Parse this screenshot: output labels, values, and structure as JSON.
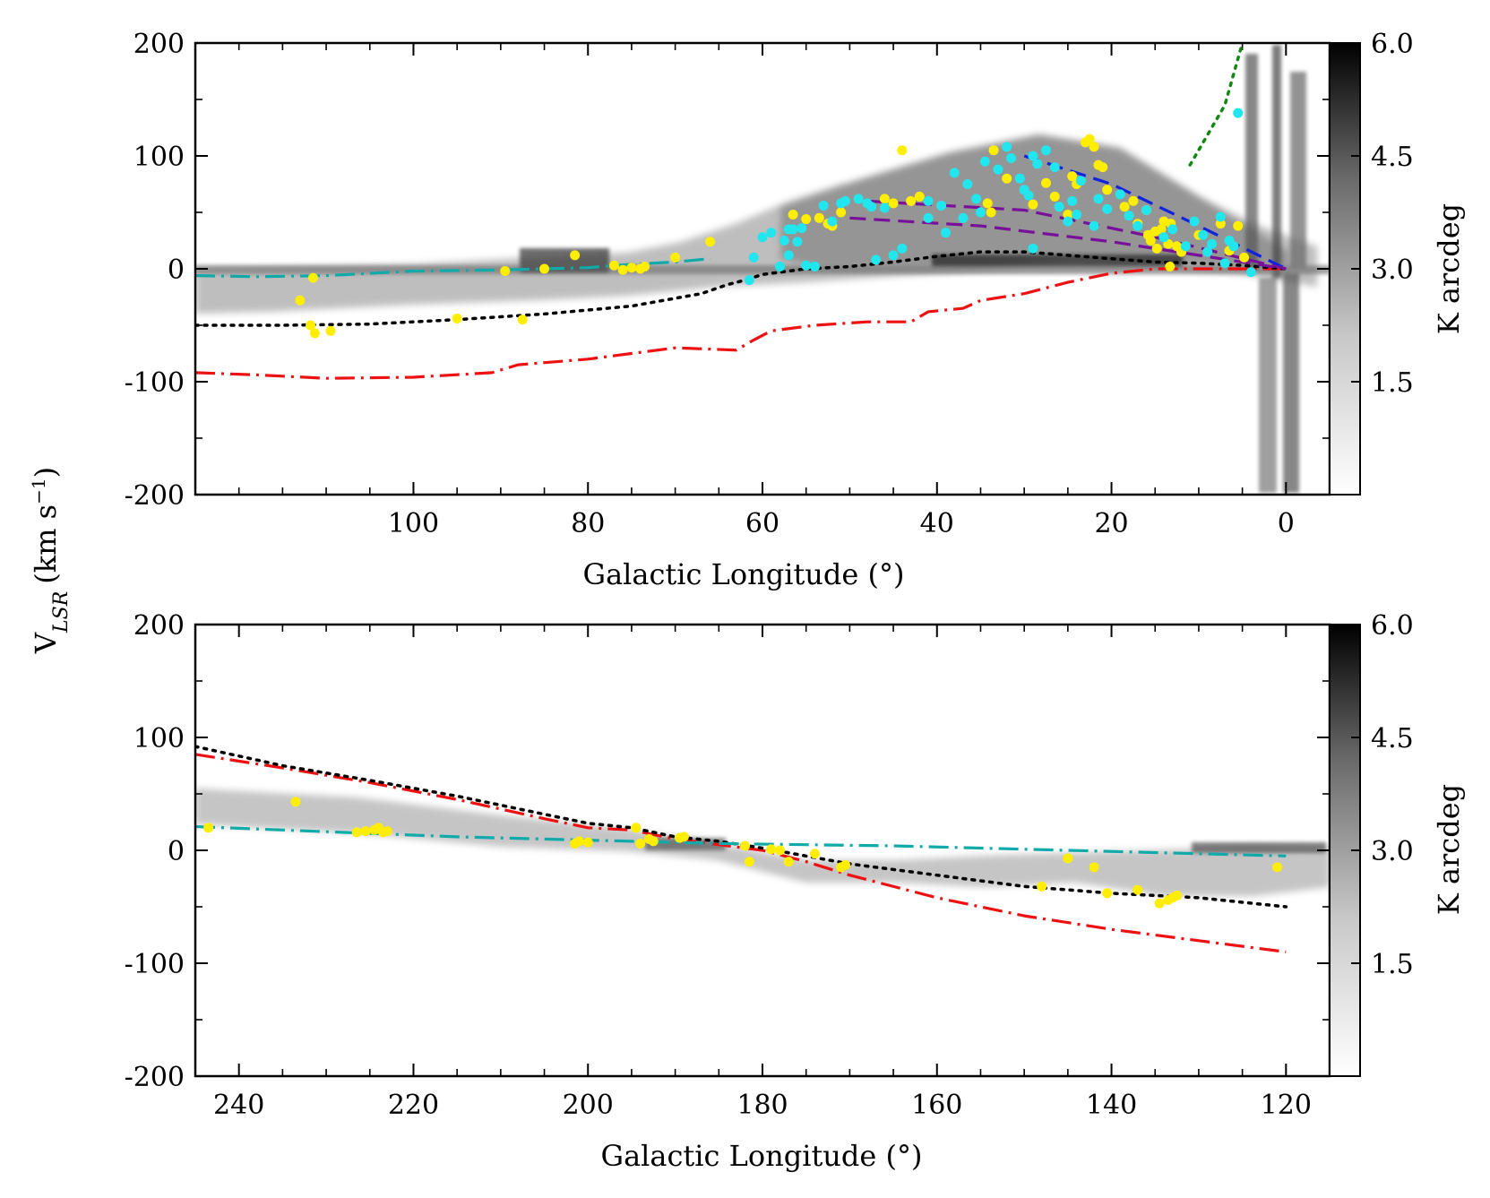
{
  "figure": {
    "shared_ylabel": "V",
    "shared_ylabel_sub": "LSR",
    "shared_ylabel_units": "(km s",
    "shared_ylabel_exp": "−1",
    "shared_ylabel_close": ")"
  },
  "chart_data": [
    {
      "type": "scatter",
      "title": "",
      "xlabel": "Galactic Longitude (°)",
      "ylabel": "VLSR (km s−1)",
      "xlim": [
        125,
        -5
      ],
      "ylim": [
        -200,
        200
      ],
      "x_ticks": [
        100,
        80,
        60,
        40,
        20,
        0
      ],
      "y_ticks": [
        200,
        100,
        0,
        -100,
        -200
      ],
      "x_tick_labels": [
        "100",
        "80",
        "60",
        "40",
        "20",
        "0"
      ],
      "y_tick_labels": [
        "200",
        "100",
        "0",
        "-100",
        "-200"
      ],
      "colorbar": {
        "label": "K arcdeg",
        "ticks": [
          "6.0",
          "4.5",
          "3.0",
          "1.5"
        ],
        "tick_values": [
          6.0,
          4.5,
          3.0,
          1.5
        ],
        "range": [
          0,
          6.0
        ]
      },
      "colors": {
        "yellow": "#ffee00",
        "cyan": "#22e6ee",
        "red": "#ee1111",
        "black": "#000000",
        "teal": "#11aaaa",
        "blue": "#1122dd",
        "purple": "#771199",
        "green": "#118811"
      },
      "series": [
        {
          "name": "Red dash-dot curve",
          "style": "dashdot",
          "color": "#ee1111",
          "x": [
            125,
            118,
            110,
            100,
            91,
            88,
            80,
            70,
            63,
            61,
            59,
            54,
            48,
            43,
            41,
            37,
            35,
            30,
            25,
            20,
            15,
            10,
            5,
            0
          ],
          "y": [
            -92,
            -94,
            -97,
            -96,
            -92,
            -85,
            -80,
            -70,
            -72,
            -63,
            -55,
            -50,
            -47,
            -47,
            -38,
            -35,
            -28,
            -22,
            -12,
            -4,
            0,
            0,
            0,
            0
          ]
        },
        {
          "name": "Black dotted curve",
          "style": "dotted",
          "color": "#000000",
          "x": [
            125,
            115,
            105,
            95,
            85,
            75,
            67,
            64,
            62,
            60,
            55,
            50,
            45,
            40,
            35,
            30,
            25,
            20,
            15,
            10,
            5,
            0
          ],
          "y": [
            -50,
            -50,
            -49,
            -45,
            -40,
            -33,
            -22,
            -14,
            -10,
            -5,
            0,
            2,
            6,
            11,
            15,
            15,
            12,
            9,
            6,
            5,
            3,
            0
          ]
        },
        {
          "name": "Teal dash-dot curve",
          "style": "dashdot",
          "color": "#11aaaa",
          "x": [
            125,
            118,
            110,
            100,
            90,
            80,
            75,
            70,
            66
          ],
          "y": [
            -6,
            -7,
            -6,
            -2,
            -1,
            1,
            4,
            6,
            9
          ]
        },
        {
          "name": "Blue dashed line",
          "style": "dashed",
          "color": "#1122dd",
          "x": [
            30,
            20,
            10,
            0
          ],
          "y": [
            100,
            75,
            38,
            0
          ]
        },
        {
          "name": "Purple dashed line A",
          "style": "dashed",
          "color": "#771199",
          "x": [
            48,
            30,
            15,
            0
          ],
          "y": [
            60,
            52,
            28,
            0
          ]
        },
        {
          "name": "Purple dashed line B",
          "style": "dashed",
          "color": "#771199",
          "x": [
            50,
            35,
            20,
            0
          ],
          "y": [
            45,
            38,
            24,
            0
          ]
        },
        {
          "name": "Green dotted line",
          "style": "dotted",
          "color": "#118811",
          "x": [
            11,
            7,
            5
          ],
          "y": [
            92,
            145,
            200
          ]
        },
        {
          "name": "Yellow points",
          "style": "scatter",
          "color": "#ffee00",
          "x": [
            111.5,
            113,
            111.8,
            109.5,
            111.3,
            95,
            89.5,
            87.5,
            85,
            81.5,
            77,
            76,
            75,
            74,
            73.5,
            70,
            66,
            56.5,
            55,
            53.5,
            52.5,
            52,
            51,
            46,
            45,
            44,
            43,
            42,
            33.5,
            34.2,
            33.8,
            32,
            29,
            27.5,
            26.5,
            25,
            24,
            24.5,
            23,
            22.5,
            22,
            21.5,
            21,
            20.5,
            18.5,
            17.5,
            17,
            16,
            15.8,
            15,
            14,
            14.8,
            13.2,
            13.5,
            12.5,
            12,
            10,
            7.5,
            6.5,
            5.5,
            4.8,
            14.3,
            15.5,
            13.3
          ],
          "y": [
            -8,
            -28,
            -50,
            -55,
            -57,
            -44,
            -2,
            -45,
            0,
            12,
            3,
            -1,
            1,
            0,
            2,
            10,
            24,
            48,
            44,
            45,
            40,
            38,
            50,
            62,
            58,
            105,
            60,
            64,
            105,
            58,
            50,
            80,
            57,
            76,
            64,
            48,
            75,
            82,
            112,
            115,
            108,
            92,
            90,
            70,
            55,
            60,
            40,
            52,
            30,
            33,
            42,
            18,
            40,
            22,
            20,
            15,
            30,
            40,
            16,
            38,
            10,
            35,
            25,
            2
          ]
        },
        {
          "name": "Cyan points",
          "style": "scatter",
          "color": "#22e6ee",
          "x": [
            61,
            60,
            59,
            57.5,
            57,
            56.5,
            55.5,
            54,
            51,
            50.5,
            49,
            48,
            47.5,
            46,
            41,
            39.5,
            38,
            37,
            36.5,
            35.5,
            34.5,
            33,
            32,
            31.5,
            30.5,
            30,
            29.5,
            29,
            28.5,
            27.5,
            26.5,
            26,
            25,
            24.5,
            24,
            23.5,
            22,
            21.5,
            20.5,
            19,
            18,
            17,
            16,
            14,
            13,
            11.5,
            10.5,
            9.5,
            8.5,
            7.5,
            6.5,
            6,
            5.5,
            58,
            57,
            56,
            55,
            53,
            52,
            47,
            45,
            44,
            41,
            39,
            35,
            29,
            9,
            61.5,
            7,
            4
          ],
          "y": [
            10,
            28,
            32,
            25,
            12,
            35,
            36,
            2,
            58,
            60,
            62,
            58,
            55,
            54,
            60,
            56,
            85,
            45,
            75,
            62,
            95,
            88,
            108,
            98,
            80,
            70,
            65,
            100,
            93,
            105,
            90,
            55,
            42,
            60,
            48,
            78,
            38,
            62,
            53,
            66,
            47,
            38,
            52,
            28,
            35,
            20,
            42,
            30,
            22,
            46,
            25,
            20,
            138,
            2,
            35,
            24,
            3,
            56,
            42,
            8,
            12,
            18,
            45,
            32,
            50,
            18,
            15,
            -10,
            5,
            -3
          ]
        }
      ]
    },
    {
      "type": "scatter",
      "title": "",
      "xlabel": "Galactic Longitude (°)",
      "ylabel": "VLSR (km s−1)",
      "xlim": [
        245,
        115
      ],
      "ylim": [
        -200,
        200
      ],
      "x_ticks": [
        240,
        220,
        200,
        180,
        160,
        140,
        120
      ],
      "y_ticks": [
        200,
        100,
        0,
        -100,
        -200
      ],
      "x_tick_labels": [
        "240",
        "220",
        "200",
        "180",
        "160",
        "140",
        "120"
      ],
      "y_tick_labels": [
        "200",
        "100",
        "0",
        "-100",
        "-200"
      ],
      "colorbar": {
        "label": "K arcdeg",
        "ticks": [
          "6.0",
          "4.5",
          "3.0",
          "1.5"
        ],
        "tick_values": [
          6.0,
          4.5,
          3.0,
          1.5
        ],
        "range": [
          0,
          6.0
        ]
      },
      "series": [
        {
          "name": "Red dash-dot curve",
          "style": "dashdot",
          "color": "#ee1111",
          "x": [
            245,
            235,
            225,
            215,
            205,
            200,
            195,
            190,
            185,
            180,
            175,
            170,
            160,
            150,
            140,
            130,
            120
          ],
          "y": [
            85,
            73,
            60,
            45,
            28,
            20,
            18,
            10,
            5,
            0,
            -10,
            -22,
            -42,
            -58,
            -70,
            -80,
            -90
          ]
        },
        {
          "name": "Black dotted curve",
          "style": "dotted",
          "color": "#000000",
          "x": [
            245,
            235,
            225,
            215,
            205,
            200,
            195,
            190,
            185,
            180,
            175,
            170,
            160,
            150,
            140,
            130,
            120
          ],
          "y": [
            92,
            75,
            62,
            48,
            32,
            24,
            20,
            12,
            8,
            2,
            -5,
            -12,
            -22,
            -32,
            -38,
            -42,
            -50
          ]
        },
        {
          "name": "Teal dash-dot curve",
          "style": "dashdot",
          "color": "#11aaaa",
          "x": [
            245,
            235,
            225,
            215,
            205,
            195,
            185,
            175,
            165,
            155,
            145,
            135,
            125,
            120
          ],
          "y": [
            21,
            18,
            15,
            12,
            10,
            8,
            6,
            5,
            4,
            2,
            0,
            -2,
            -4,
            -5
          ]
        },
        {
          "name": "Yellow points",
          "style": "scatter",
          "color": "#ffee00",
          "x": [
            243.5,
            233.5,
            226.5,
            225.5,
            224.5,
            224,
            223.5,
            223,
            201.5,
            201,
            200,
            194.5,
            194,
            193,
            192.5,
            189.5,
            189,
            182,
            181.5,
            179,
            178,
            177,
            174,
            171,
            170.5,
            148,
            145,
            142,
            140.5,
            137,
            134.5,
            133.5,
            133,
            132.5,
            121
          ],
          "y": [
            20,
            43,
            16,
            17,
            18,
            20,
            16,
            17,
            6,
            8,
            7,
            20,
            6,
            10,
            8,
            11,
            12,
            4,
            -10,
            1,
            0,
            -10,
            -3,
            -15,
            -13,
            -32,
            -7,
            -15,
            -38,
            -35,
            -47,
            -44,
            -42,
            -40,
            -15
          ]
        }
      ]
    }
  ]
}
